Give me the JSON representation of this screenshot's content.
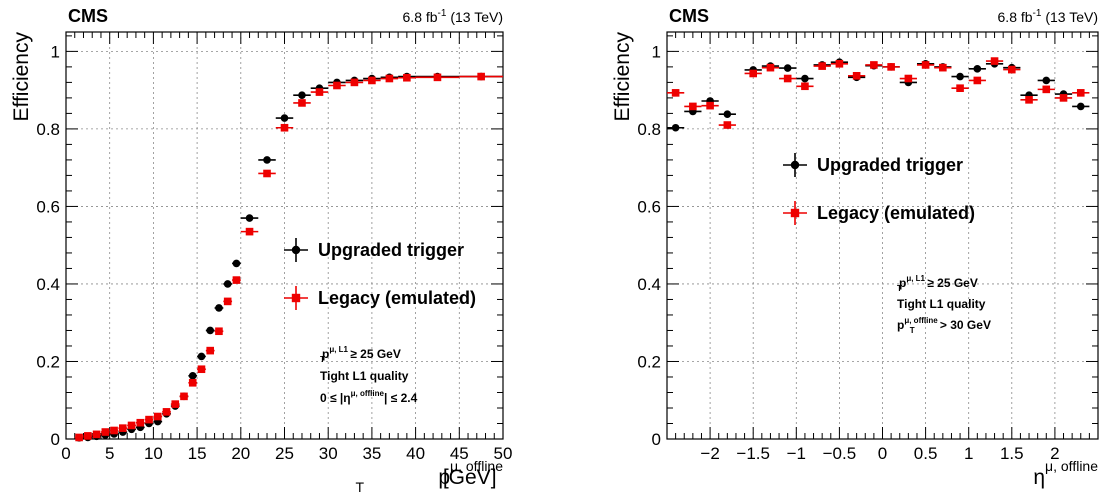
{
  "chart_data": [
    {
      "type": "scatter",
      "experiment": "CMS",
      "lumi_label": "6.8 fb",
      "lumi_exp": "-1",
      "lumi_energy": " (13 TeV)",
      "ylabel": "Efficiency",
      "xlabel": {
        "base": "p",
        "sub": "T",
        "sup": "μ, offline",
        "unit": " [GeV]"
      },
      "xlim": [
        0,
        50
      ],
      "ylim": [
        0,
        1.05
      ],
      "xticks": [
        0,
        5,
        10,
        15,
        20,
        25,
        30,
        35,
        40,
        45,
        50
      ],
      "xtick_labels": [
        "0",
        "5",
        "10",
        "15",
        "20",
        "25",
        "30",
        "35",
        "40",
        "45",
        "50"
      ],
      "yticks": [
        0,
        0.2,
        0.4,
        0.6,
        0.8,
        1
      ],
      "ytick_labels": [
        "0",
        "0.2",
        "0.4",
        "0.6",
        "0.8",
        "1"
      ],
      "grid": true,
      "legend": {
        "placement": "center-right",
        "entries": [
          "Upgraded trigger",
          "Legacy (emulated)"
        ]
      },
      "annotation": [
        {
          "base": "p",
          "sub": "T",
          "sup": "μ, L1",
          "rest": " ≥ 25 GeV"
        },
        {
          "base": "Tight L1 quality",
          "sub": "",
          "sup": "",
          "rest": ""
        },
        {
          "base": "0 ≤ |η",
          "sub": "",
          "sup": "μ, offline",
          "rest": "| ≤ 2.4"
        }
      ],
      "series": [
        {
          "name": "Upgraded trigger",
          "color": "#000000",
          "marker": "circle",
          "x": [
            1.5,
            2.5,
            3.5,
            4.5,
            5.5,
            6.5,
            7.5,
            8.5,
            9.5,
            10.5,
            11.5,
            12.5,
            13.5,
            14.5,
            15.5,
            16.5,
            17.5,
            18.5,
            19.5,
            21,
            23,
            25,
            27,
            29,
            31,
            33,
            35,
            37,
            39,
            42.5,
            47.5
          ],
          "xerr": [
            0.5,
            0.5,
            0.5,
            0.5,
            0.5,
            0.5,
            0.5,
            0.5,
            0.5,
            0.5,
            0.5,
            0.5,
            0.5,
            0.5,
            0.5,
            0.5,
            0.5,
            0.5,
            0.5,
            1,
            1,
            1,
            1,
            1,
            1,
            1,
            1,
            1,
            1,
            2.5,
            2.5
          ],
          "y": [
            0.003,
            0.004,
            0.007,
            0.01,
            0.013,
            0.018,
            0.025,
            0.03,
            0.04,
            0.045,
            0.065,
            0.085,
            0.11,
            0.163,
            0.213,
            0.28,
            0.338,
            0.4,
            0.453,
            0.57,
            0.72,
            0.828,
            0.887,
            0.905,
            0.92,
            0.925,
            0.93,
            0.933,
            0.935,
            0.935,
            0.935
          ]
        },
        {
          "name": "Legacy (emulated)",
          "color": "#ee0000",
          "marker": "square",
          "x": [
            1.5,
            2.5,
            3.5,
            4.5,
            5.5,
            6.5,
            7.5,
            8.5,
            9.5,
            10.5,
            11.5,
            12.5,
            13.5,
            14.5,
            15.5,
            16.5,
            17.5,
            18.5,
            19.5,
            21,
            23,
            25,
            27,
            29,
            31,
            33,
            35,
            37,
            39,
            42.5,
            47.5
          ],
          "xerr": [
            0.5,
            0.5,
            0.5,
            0.5,
            0.5,
            0.5,
            0.5,
            0.5,
            0.5,
            0.5,
            0.5,
            0.5,
            0.5,
            0.5,
            0.5,
            0.5,
            0.5,
            0.5,
            0.5,
            1,
            1,
            1,
            1,
            1,
            1,
            1,
            1,
            1,
            1,
            2.5,
            2.5
          ],
          "y": [
            0.004,
            0.008,
            0.012,
            0.018,
            0.022,
            0.028,
            0.035,
            0.042,
            0.05,
            0.058,
            0.07,
            0.09,
            0.11,
            0.145,
            0.18,
            0.228,
            0.278,
            0.355,
            0.41,
            0.535,
            0.685,
            0.803,
            0.867,
            0.895,
            0.912,
            0.92,
            0.925,
            0.93,
            0.932,
            0.933,
            0.935
          ]
        }
      ]
    },
    {
      "type": "scatter",
      "experiment": "CMS",
      "lumi_label": "6.8 fb",
      "lumi_exp": "-1",
      "lumi_energy": " (13 TeV)",
      "ylabel": "Efficiency",
      "xlabel": {
        "base": "η",
        "sub": "",
        "sup": "μ, offline",
        "unit": ""
      },
      "xlim": [
        -2.5,
        2.5
      ],
      "ylim": [
        0,
        1.05
      ],
      "xticks": [
        -2,
        -1.5,
        -1,
        -0.5,
        0,
        0.5,
        1,
        1.5,
        2
      ],
      "xtick_labels": [
        "−2",
        "−1.5",
        "−1",
        "−0.5",
        "0",
        "0.5",
        "1",
        "1.5",
        "2"
      ],
      "yticks": [
        0,
        0.2,
        0.4,
        0.6,
        0.8,
        1
      ],
      "ytick_labels": [
        "0",
        "0.2",
        "0.4",
        "0.6",
        "0.8",
        "1"
      ],
      "grid": true,
      "legend": {
        "placement": "upper-center",
        "entries": [
          "Upgraded trigger",
          "Legacy (emulated)"
        ]
      },
      "annotation": [
        {
          "base": "p",
          "sub": "T",
          "sup": "μ, L1",
          "rest": " ≥ 25 GeV"
        },
        {
          "base": "Tight L1 quality",
          "sub": "",
          "sup": "",
          "rest": ""
        },
        {
          "base": "p",
          "sub": "T",
          "sup": "μ, offline",
          "rest": " > 30 GeV"
        }
      ],
      "series": [
        {
          "name": "Upgraded trigger",
          "color": "#000000",
          "marker": "circle",
          "x": [
            -2.4,
            -2.2,
            -2.0,
            -1.8,
            -1.5,
            -1.3,
            -1.1,
            -0.9,
            -0.7,
            -0.5,
            -0.3,
            -0.1,
            0.1,
            0.3,
            0.5,
            0.7,
            0.9,
            1.1,
            1.3,
            1.5,
            1.7,
            1.9,
            2.1,
            2.3
          ],
          "xerr": [
            0.1,
            0.1,
            0.1,
            0.1,
            0.1,
            0.1,
            0.1,
            0.1,
            0.1,
            0.1,
            0.1,
            0.1,
            0.1,
            0.1,
            0.1,
            0.1,
            0.1,
            0.1,
            0.1,
            0.1,
            0.1,
            0.1,
            0.1,
            0.1
          ],
          "y": [
            0.803,
            0.845,
            0.872,
            0.838,
            0.952,
            0.962,
            0.957,
            0.93,
            0.965,
            0.972,
            0.933,
            0.963,
            0.96,
            0.92,
            0.968,
            0.96,
            0.935,
            0.955,
            0.968,
            0.958,
            0.887,
            0.925,
            0.89,
            0.858
          ]
        },
        {
          "name": "Legacy (emulated)",
          "color": "#ee0000",
          "marker": "square",
          "x": [
            -2.4,
            -2.2,
            -2.0,
            -1.8,
            -1.5,
            -1.3,
            -1.1,
            -0.9,
            -0.7,
            -0.5,
            -0.3,
            -0.1,
            0.1,
            0.3,
            0.5,
            0.7,
            0.9,
            1.1,
            1.3,
            1.5,
            1.7,
            1.9,
            2.1,
            2.3
          ],
          "xerr": [
            0.1,
            0.1,
            0.1,
            0.1,
            0.1,
            0.1,
            0.1,
            0.1,
            0.1,
            0.1,
            0.1,
            0.1,
            0.1,
            0.1,
            0.1,
            0.1,
            0.1,
            0.1,
            0.1,
            0.1,
            0.1,
            0.1,
            0.1,
            0.1
          ],
          "y": [
            0.893,
            0.858,
            0.86,
            0.81,
            0.943,
            0.958,
            0.93,
            0.91,
            0.962,
            0.968,
            0.937,
            0.965,
            0.96,
            0.93,
            0.965,
            0.958,
            0.905,
            0.925,
            0.975,
            0.953,
            0.875,
            0.902,
            0.88,
            0.893
          ]
        }
      ]
    }
  ]
}
